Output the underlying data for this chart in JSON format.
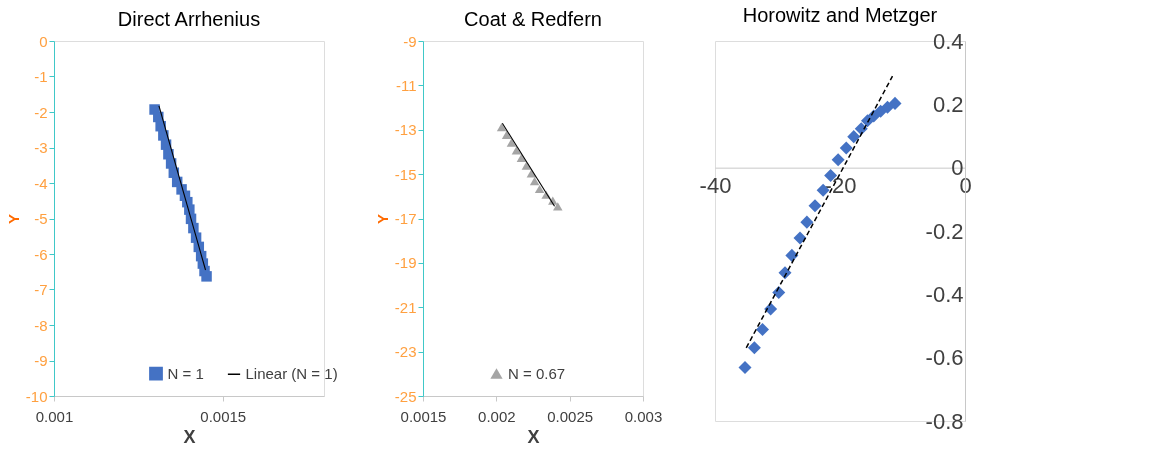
{
  "chart_data": [
    {
      "type": "scatter",
      "title": "Direct Arrhenius",
      "xlabel": "X",
      "ylabel": "Y",
      "xlim": [
        0.001,
        0.0018
      ],
      "xticks": [
        0.001,
        0.0015
      ],
      "ylim": [
        -10,
        0
      ],
      "yticks": [
        0,
        -1,
        -2,
        -3,
        -4,
        -5,
        -6,
        -7,
        -8,
        -9,
        -10
      ],
      "grid": false,
      "legend": "bottom right",
      "series": [
        {
          "name": "N = 1",
          "marker": "square",
          "color": "#4472c4",
          "x": [
            0.001298,
            0.001309,
            0.001316,
            0.001324,
            0.001332,
            0.001339,
            0.001347,
            0.001355,
            0.001365,
            0.001378,
            0.001388,
            0.001395,
            0.001401,
            0.001406,
            0.001413,
            0.001421,
            0.001429,
            0.001436,
            0.001441,
            0.001446,
            0.001452
          ],
          "values": [
            -1.93,
            -2.14,
            -2.4,
            -2.66,
            -2.92,
            -3.19,
            -3.45,
            -3.71,
            -3.97,
            -4.18,
            -4.36,
            -4.54,
            -4.75,
            -5.01,
            -5.27,
            -5.54,
            -5.8,
            -6.06,
            -6.27,
            -6.48,
            -6.63
          ]
        },
        {
          "name": "Linear (N = 1)",
          "type": "line",
          "line_style": "solid",
          "color": "#000000",
          "x": [
            0.001311,
            0.001449
          ],
          "values": [
            -1.83,
            -6.45
          ]
        }
      ]
    },
    {
      "type": "scatter",
      "title": "Coat & Redfern",
      "xlabel": "X",
      "ylabel": "Y",
      "xlim": [
        0.0015,
        0.003
      ],
      "xticks": [
        0.0015,
        0.002,
        0.0025,
        0.003
      ],
      "ylim": [
        -25,
        -9
      ],
      "yticks": [
        -9,
        -11,
        -13,
        -15,
        -17,
        -19,
        -21,
        -23,
        -25
      ],
      "grid": false,
      "legend": "bottom",
      "series": [
        {
          "name": "N = 0.67",
          "marker": "triangle",
          "color": "#a5a5a5",
          "x": [
            0.002036,
            0.00207,
            0.002103,
            0.002137,
            0.002171,
            0.002205,
            0.002239,
            0.002261,
            0.002295,
            0.00234,
            0.002385,
            0.002419
          ],
          "values": [
            -12.88,
            -13.23,
            -13.58,
            -13.93,
            -14.27,
            -14.62,
            -14.97,
            -15.32,
            -15.67,
            -15.93,
            -16.19,
            -16.45
          ]
        },
        {
          "type": "line",
          "line_style": "solid",
          "color": "#000000",
          "x": [
            0.002041,
            0.002397
          ],
          "values": [
            -12.71,
            -16.45
          ]
        }
      ]
    },
    {
      "type": "scatter",
      "title": "Horowitz and Metzger",
      "xlim": [
        -40,
        0
      ],
      "xticks": [
        -40,
        -20,
        0
      ],
      "ylim": [
        -0.8,
        0.4
      ],
      "yticks": [
        0.4,
        0.2,
        0,
        -0.2,
        -0.4,
        -0.6,
        -0.8
      ],
      "grid": false,
      "legend": false,
      "series": [
        {
          "marker": "diamond",
          "color": "#4472c4",
          "x": [
            -35.2,
            -33.7,
            -32.4,
            -31.1,
            -29.8,
            -28.8,
            -27.7,
            -26.4,
            -25.3,
            -24.0,
            -22.7,
            -21.5,
            -20.3,
            -19.0,
            -17.8,
            -16.6,
            -15.6,
            -14.6,
            -13.5,
            -12.4,
            -11.2
          ],
          "values": [
            -0.631,
            -0.569,
            -0.511,
            -0.446,
            -0.394,
            -0.332,
            -0.277,
            -0.222,
            -0.172,
            -0.12,
            -0.071,
            -0.025,
            0.025,
            0.062,
            0.098,
            0.123,
            0.148,
            0.163,
            0.178,
            0.191,
            0.203
          ]
        },
        {
          "type": "line",
          "line_style": "dashed",
          "color": "#000000",
          "x": [
            -35.0,
            -11.6
          ],
          "values": [
            -0.569,
            0.289
          ]
        }
      ]
    }
  ]
}
